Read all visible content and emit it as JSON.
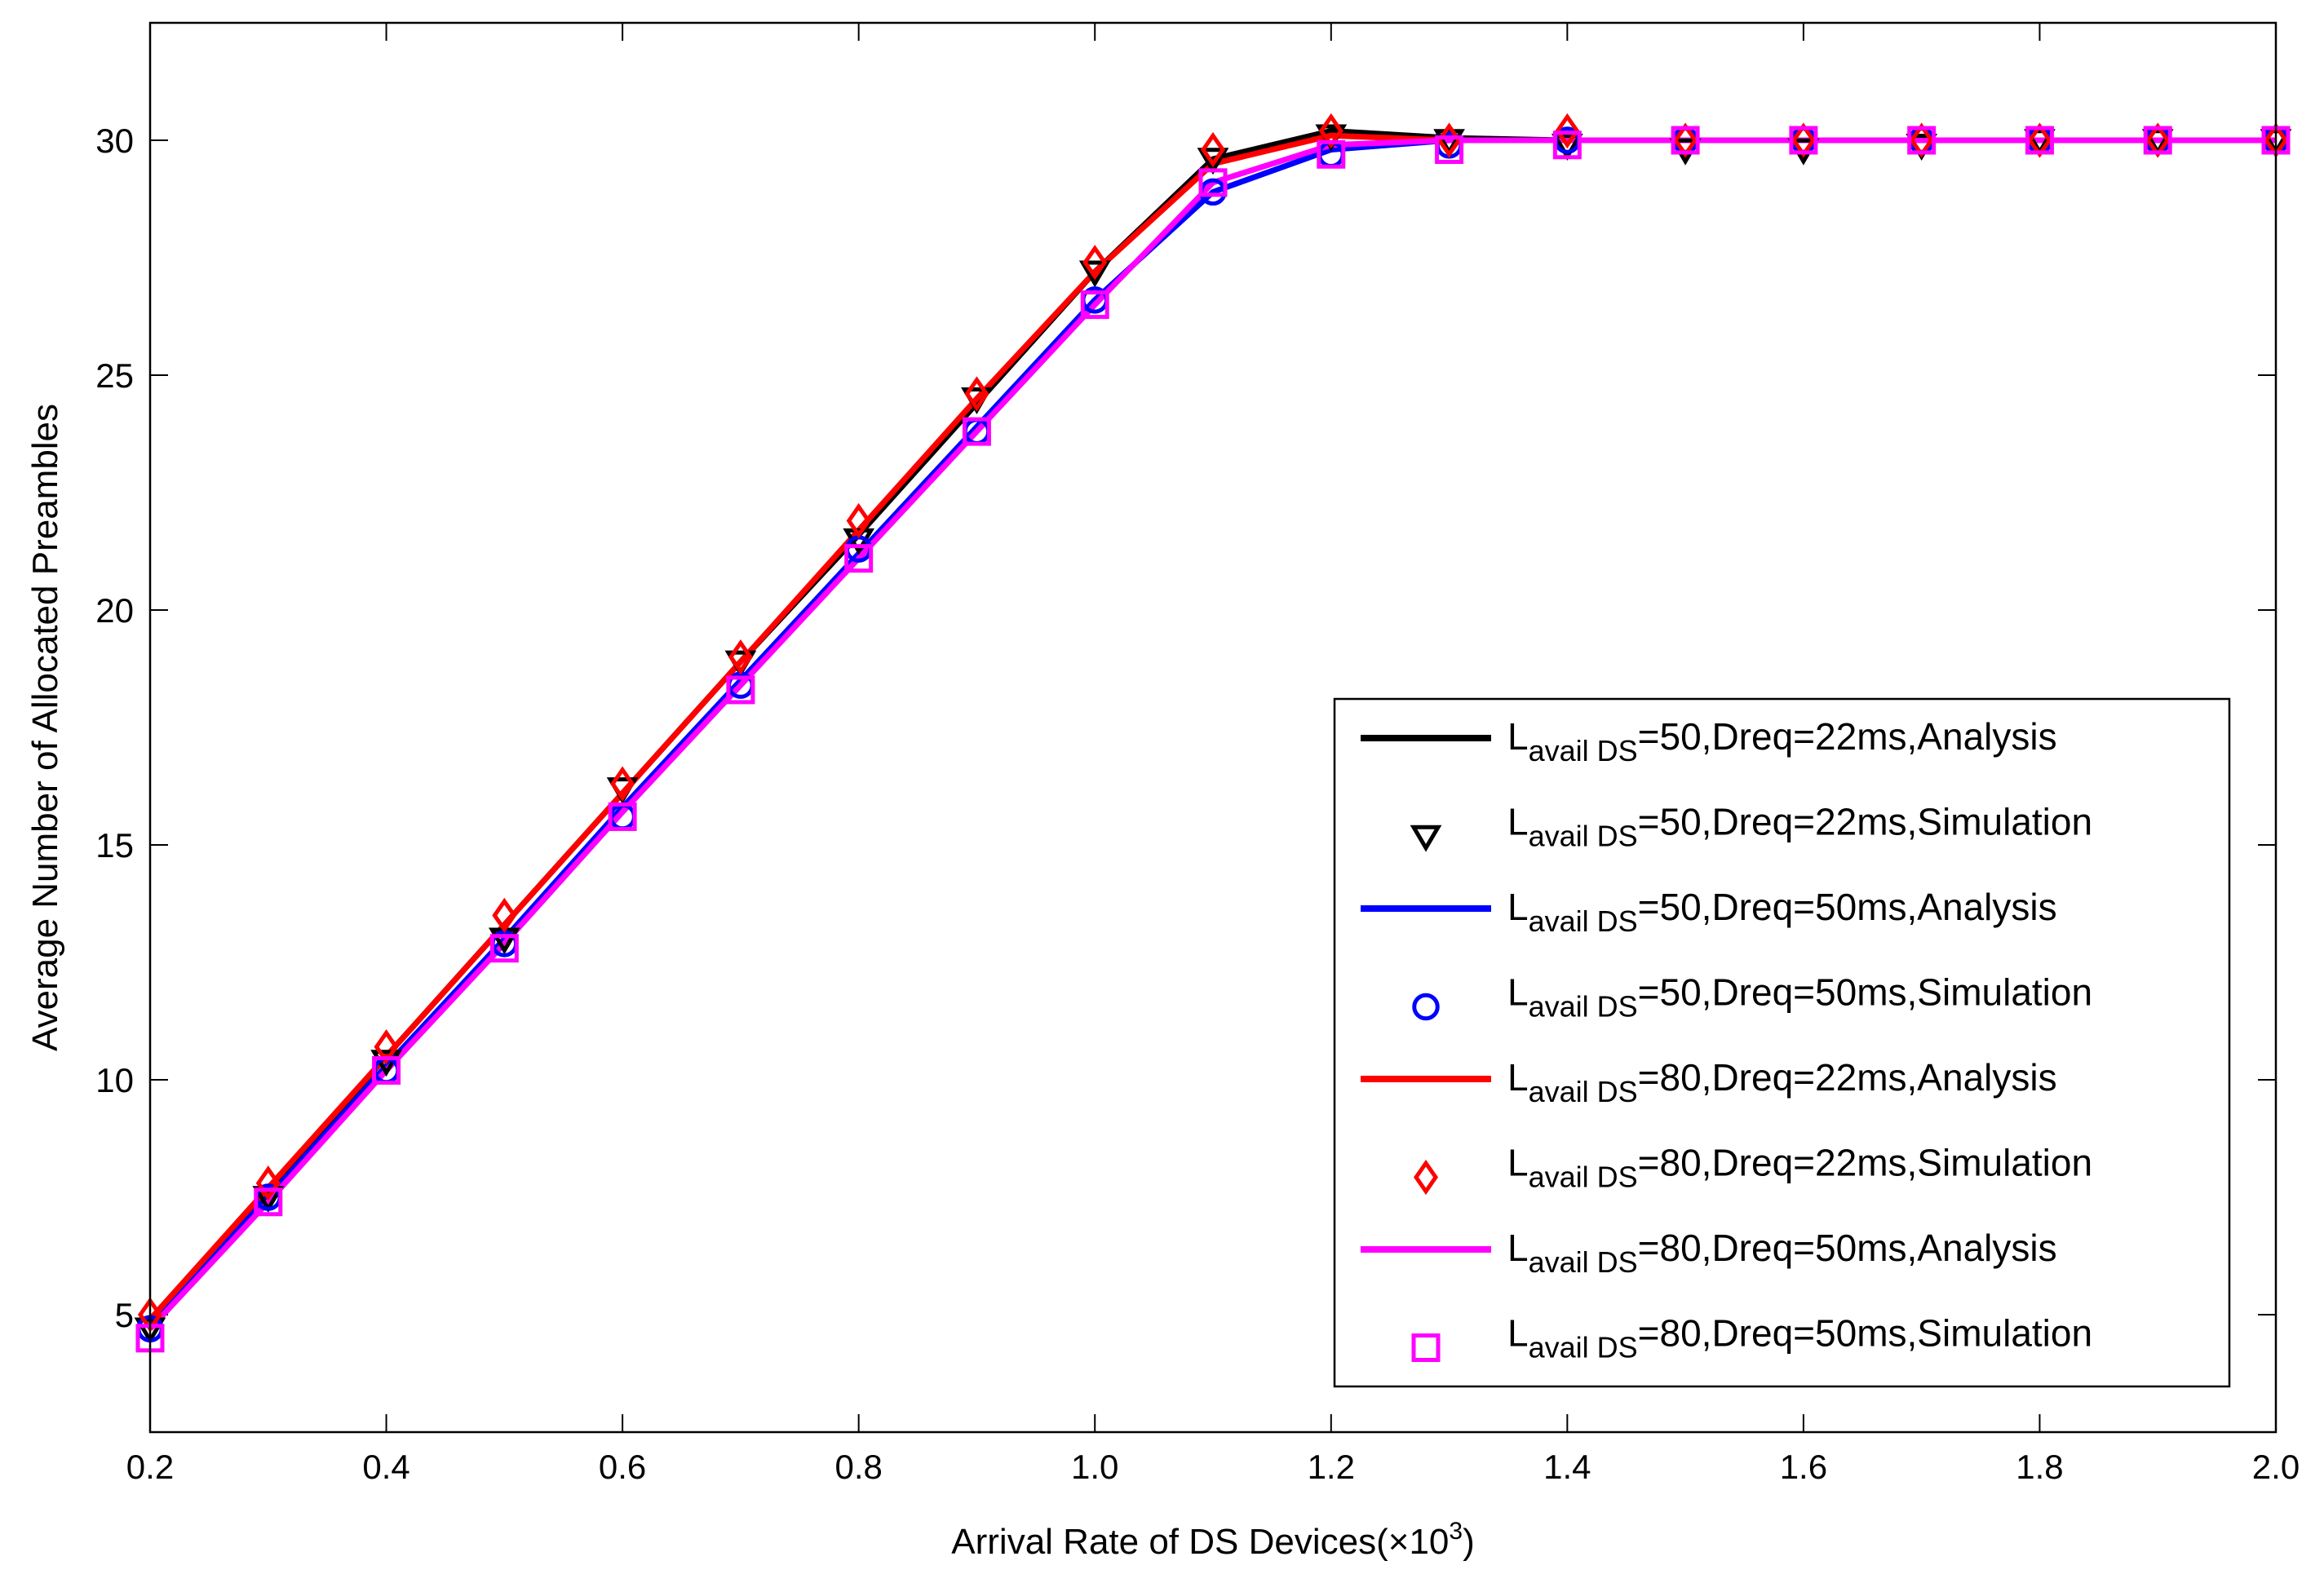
{
  "chart_data": {
    "type": "line",
    "title": "",
    "xlabel": "Arrival Rate of DS Devices(×10",
    "xlabel_sup": "3",
    "xlabel_close": ")",
    "ylabel": "Average Number of Allocated Preambles",
    "xlim": [
      0.2,
      2.0
    ],
    "ylim": [
      2.5,
      32.5
    ],
    "xticks": [
      0.2,
      0.4,
      0.6,
      0.8,
      1.0,
      1.2,
      1.4,
      1.6,
      1.8,
      2.0
    ],
    "xtick_labels": [
      "0.2",
      "0.4",
      "0.6",
      "0.8",
      "1.0",
      "1.2",
      "1.4",
      "1.6",
      "1.8",
      "2.0"
    ],
    "yticks": [
      5,
      10,
      15,
      20,
      25,
      30
    ],
    "ytick_labels": [
      "5",
      "10",
      "15",
      "20",
      "25",
      "30"
    ],
    "grid": false,
    "legend_position": "bottom-right",
    "x": [
      0.2,
      0.3,
      0.4,
      0.5,
      0.6,
      0.7,
      0.8,
      0.9,
      1.0,
      1.1,
      1.2,
      1.3,
      1.4,
      1.5,
      1.6,
      1.7,
      1.8,
      1.9,
      2.0
    ],
    "series": [
      {
        "name_main": "L",
        "name_sub": "avail DS",
        "name_rest": "=50,Dreq=22ms,Analysis",
        "kind": "line",
        "color": "#000000",
        "values": [
          4.9,
          7.6,
          10.5,
          13.3,
          16.1,
          18.9,
          21.6,
          24.4,
          27.2,
          29.6,
          30.2,
          30.05,
          30.0,
          30.0,
          30.0,
          30.0,
          30.0,
          30.0,
          30.0
        ]
      },
      {
        "name_main": "L",
        "name_sub": "avail DS",
        "name_rest": "=50,Dreq=22ms,Simulation",
        "kind": "marker",
        "marker": "triangle-down",
        "color": "#000000",
        "values": [
          4.7,
          7.5,
          10.4,
          13.0,
          16.2,
          18.9,
          21.5,
          24.5,
          27.2,
          29.6,
          30.1,
          30.0,
          29.9,
          29.8,
          29.8,
          29.9,
          30.0,
          30.0,
          30.0
        ]
      },
      {
        "name_main": "L",
        "name_sub": "avail DS",
        "name_rest": "=50,Dreq=50ms,Analysis",
        "kind": "line",
        "color": "#0000ff",
        "values": [
          4.8,
          7.5,
          10.3,
          13.0,
          15.8,
          18.5,
          21.2,
          23.9,
          26.6,
          28.9,
          29.8,
          30.0,
          30.0,
          30.0,
          30.0,
          30.0,
          30.0,
          30.0,
          30.0
        ]
      },
      {
        "name_main": "L",
        "name_sub": "avail DS",
        "name_rest": "=50,Dreq=50ms,Simulation",
        "kind": "marker",
        "marker": "circle",
        "color": "#0000ff",
        "values": [
          4.7,
          7.5,
          10.2,
          12.9,
          15.6,
          18.4,
          21.3,
          23.8,
          26.6,
          28.9,
          29.7,
          29.9,
          30.0,
          30.0,
          30.0,
          30.0,
          30.0,
          30.0,
          30.0
        ]
      },
      {
        "name_main": "L",
        "name_sub": "avail DS",
        "name_rest": "=80,Dreq=22ms,Analysis",
        "kind": "line",
        "color": "#ff0000",
        "values": [
          4.9,
          7.7,
          10.5,
          13.3,
          16.1,
          18.9,
          21.7,
          24.5,
          27.2,
          29.5,
          30.1,
          30.0,
          30.0,
          30.0,
          30.0,
          30.0,
          30.0,
          30.0,
          30.0
        ]
      },
      {
        "name_main": "L",
        "name_sub": "avail DS",
        "name_rest": "=80,Dreq=22ms,Simulation",
        "kind": "marker",
        "marker": "diamond",
        "color": "#ff0000",
        "values": [
          5.0,
          7.8,
          10.7,
          13.5,
          16.3,
          19.0,
          21.9,
          24.6,
          27.4,
          29.8,
          30.2,
          30.0,
          30.2,
          30.0,
          30.0,
          30.0,
          30.0,
          30.0,
          30.0
        ]
      },
      {
        "name_main": "L",
        "name_sub": "avail DS",
        "name_rest": "=80,Dreq=50ms,Analysis",
        "kind": "line",
        "color": "#ff00ff",
        "values": [
          4.7,
          7.4,
          10.2,
          12.9,
          15.7,
          18.4,
          21.1,
          23.8,
          26.5,
          29.1,
          29.9,
          30.0,
          30.0,
          30.0,
          30.0,
          30.0,
          30.0,
          30.0,
          30.0
        ]
      },
      {
        "name_main": "L",
        "name_sub": "avail DS",
        "name_rest": "=80,Dreq=50ms,Simulation",
        "kind": "marker",
        "marker": "square",
        "color": "#ff00ff",
        "values": [
          4.5,
          7.4,
          10.2,
          12.8,
          15.6,
          18.3,
          21.1,
          23.8,
          26.5,
          29.1,
          29.7,
          29.8,
          29.9,
          30.0,
          30.0,
          30.0,
          30.0,
          30.0,
          30.0
        ]
      }
    ]
  }
}
